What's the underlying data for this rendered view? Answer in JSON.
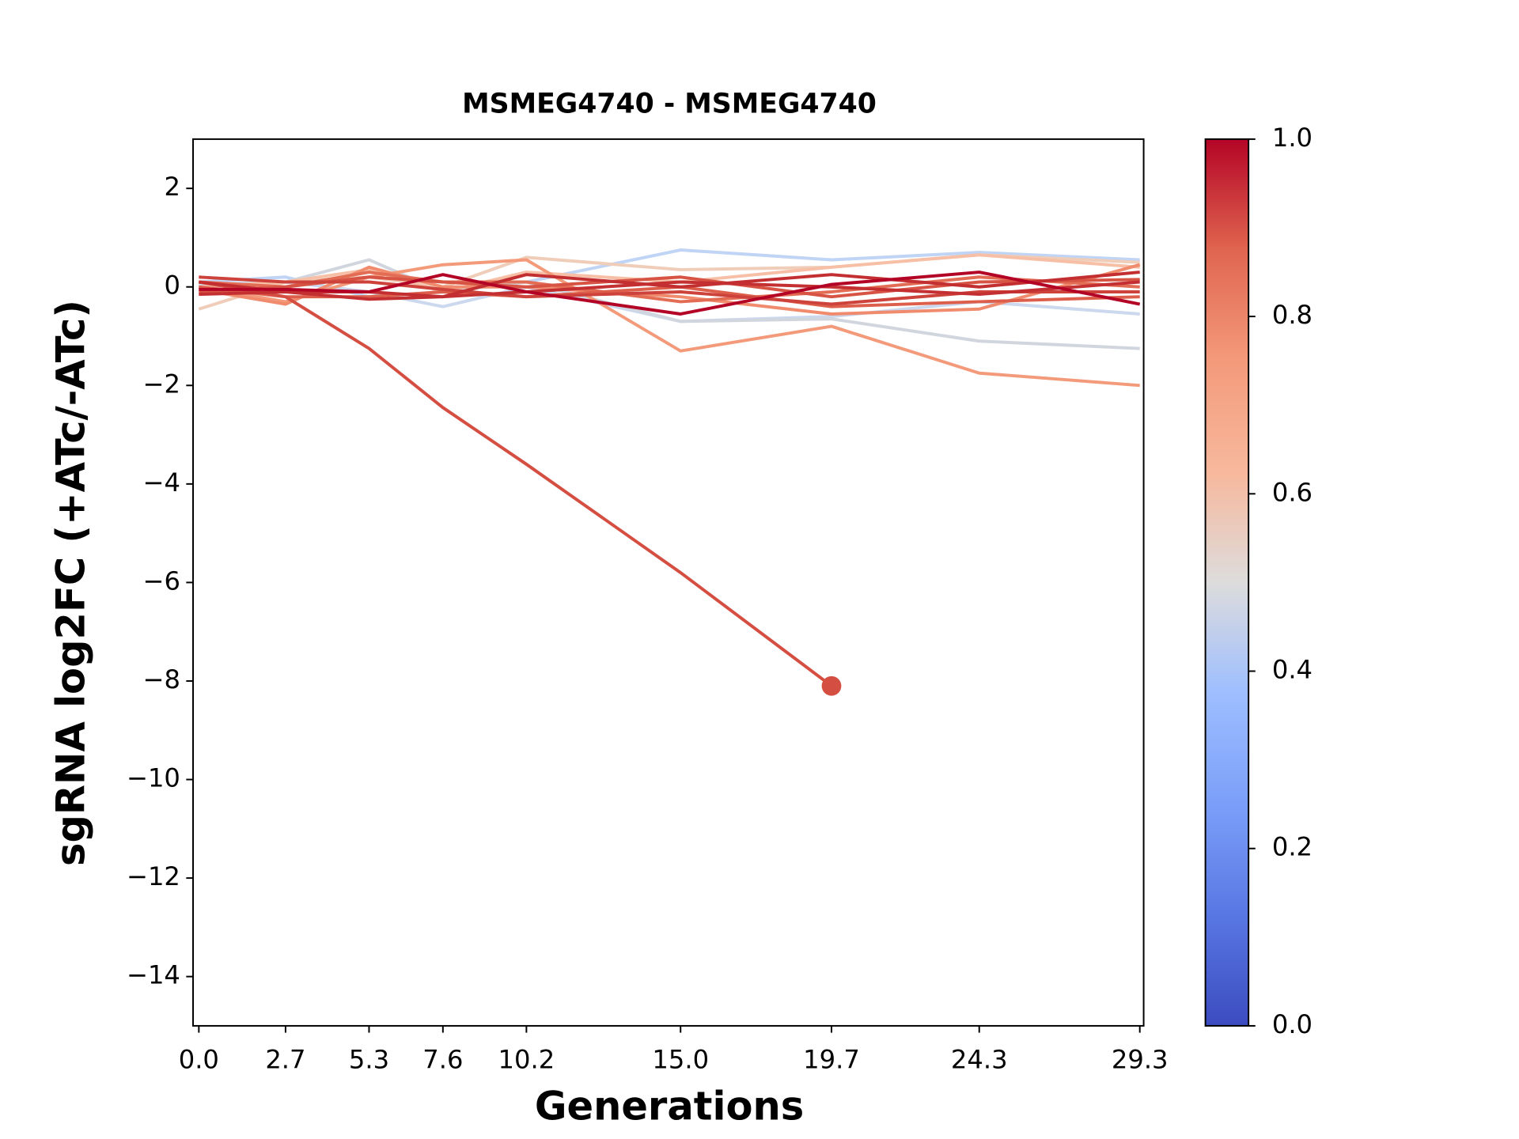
{
  "chart_data": {
    "type": "line",
    "title": "MSMEG4740 - MSMEG4740",
    "xlabel": "Generations",
    "ylabel": "sgRNA log2FC (+ATc/-ATc)",
    "x": [
      0,
      2.7,
      5.3,
      7.6,
      10.2,
      15,
      19.7,
      24.3,
      29.3
    ],
    "xlim": [
      -0.18,
      29.42
    ],
    "xticks": [
      {
        "value": 0,
        "label": "0.0"
      },
      2.7,
      5.3,
      7.6,
      10.2,
      {
        "value": 15,
        "label": "15.0"
      },
      19.7,
      24.3,
      29.3
    ],
    "ylim": [
      -15,
      3
    ],
    "yticks": [
      {
        "value": -14,
        "label": "−14"
      },
      {
        "value": -12,
        "label": "−12"
      },
      {
        "value": -10,
        "label": "−10"
      },
      {
        "value": -8,
        "label": "−8"
      },
      {
        "value": -6,
        "label": "−6"
      },
      {
        "value": -4,
        "label": "−4"
      },
      {
        "value": -2,
        "label": "−2"
      },
      0,
      2
    ],
    "colorbar": {
      "lim": [
        0,
        1
      ],
      "ticks": [
        {
          "value": 0,
          "label": "0.0"
        },
        0.2,
        0.4,
        0.6,
        0.8,
        {
          "value": 1,
          "label": "1.0"
        }
      ]
    },
    "series": [
      {
        "color": "#c0d4f5",
        "values": [
          0.1,
          0.2,
          -0.2,
          -0.1,
          0.1,
          0.75,
          0.55,
          0.7,
          0.55
        ]
      },
      {
        "color": "#cbd8ee",
        "values": [
          0.05,
          0.1,
          -0.1,
          -0.4,
          0.0,
          -0.7,
          -0.6,
          -0.3,
          -0.55
        ]
      },
      {
        "color": "#d1d6de",
        "values": [
          0,
          0.1,
          0.55,
          -0.1,
          0.1,
          -0.7,
          -0.65,
          -1.1,
          -1.25
        ]
      },
      {
        "color": "#efcdb9",
        "values": [
          -0.45,
          0.1,
          0.2,
          0.0,
          0.6,
          0.35,
          0.4,
          0.65,
          0.5
        ]
      },
      {
        "color": "#f6bfa6",
        "values": [
          0.0,
          0.1,
          0.35,
          -0.1,
          0.3,
          0.1,
          0.4,
          0.65,
          0.4
        ]
      },
      {
        "color": "#f39a7b",
        "values": [
          0.0,
          -0.3,
          0.2,
          0.45,
          0.55,
          -1.3,
          -0.8,
          -1.75,
          -2.0
        ]
      },
      {
        "color": "#f08b6e",
        "values": [
          -0.05,
          -0.35,
          0.4,
          0.0,
          0.0,
          -0.2,
          -0.55,
          -0.45,
          0.45
        ]
      },
      {
        "color": "#e36c55",
        "values": [
          0.1,
          0.0,
          0.3,
          0.1,
          0.1,
          -0.3,
          -0.1,
          0.2,
          0.0
        ]
      },
      {
        "color": "#dd5f4b",
        "values": [
          0.0,
          -0.2,
          -0.2,
          -0.1,
          -0.2,
          0.0,
          -0.4,
          -0.3,
          -0.2
        ]
      },
      {
        "color": "#d75445",
        "values": [
          -0.1,
          0.0,
          0.2,
          0.1,
          0.0,
          0.2,
          -0.2,
          0.1,
          0.15
        ]
      },
      {
        "color": "#d44e41",
        "values": [
          0.1,
          -0.2,
          -1.25,
          -2.45,
          -3.6,
          -5.8,
          -8.1,
          null,
          null
        ],
        "end_marker": true
      },
      {
        "color": "#cd423b",
        "values": [
          0.2,
          0.1,
          0.1,
          -0.05,
          -0.2,
          -0.1,
          -0.35,
          -0.1,
          -0.1
        ]
      },
      {
        "color": "#c43032",
        "values": [
          -0.15,
          -0.1,
          -0.25,
          -0.2,
          -0.1,
          0.1,
          0.0,
          -0.15,
          0.1
        ]
      },
      {
        "color": "#c32e31",
        "values": [
          0.1,
          -0.1,
          -0.1,
          -0.2,
          0.25,
          0.0,
          0.25,
          0.0,
          0.3
        ]
      },
      {
        "color": "#b40426",
        "values": [
          -0.05,
          -0.05,
          -0.1,
          0.25,
          -0.1,
          -0.55,
          0.05,
          0.3,
          -0.35
        ]
      }
    ]
  }
}
